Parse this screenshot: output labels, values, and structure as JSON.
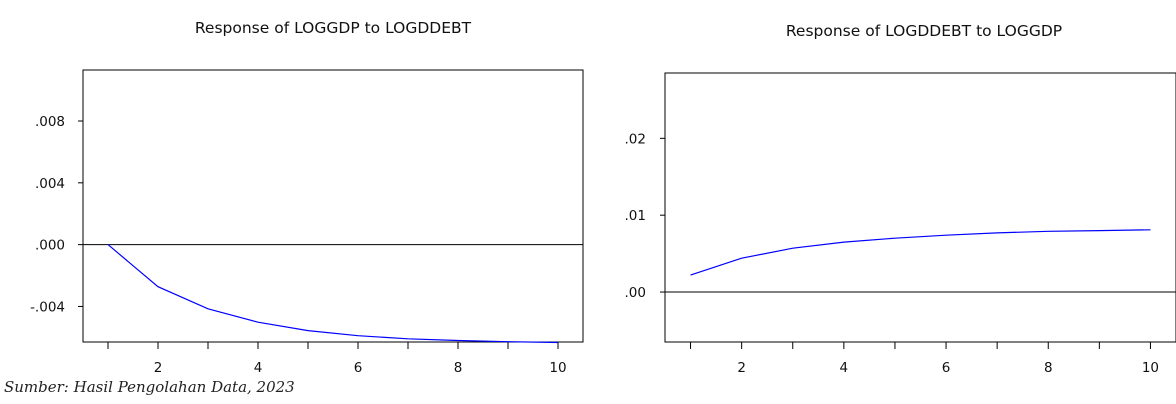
{
  "chart_data": [
    {
      "type": "line",
      "title": "Response of LOGGDP to LOGDDEBT",
      "xlabel": "",
      "ylabel": "",
      "xlim": [
        0.5,
        10.5
      ],
      "ylim": [
        -0.0063,
        0.0113
      ],
      "x_ticks": [
        2,
        4,
        6,
        8,
        10
      ],
      "y_ticks": [
        {
          "value": 0.008,
          "label": ".008"
        },
        {
          "value": 0.004,
          "label": ".004"
        },
        {
          "value": 0.0,
          "label": ".000"
        },
        {
          "value": -0.004,
          "label": "-.004"
        }
      ],
      "zero_line": true,
      "series": [
        {
          "color": "#0000ff",
          "x": [
            1,
            2,
            3,
            4,
            5,
            6,
            7,
            8,
            9,
            10
          ],
          "values": [
            0.0,
            -0.00272,
            -0.00415,
            -0.00502,
            -0.00556,
            -0.00589,
            -0.00609,
            -0.0062,
            -0.00628,
            -0.00633
          ]
        }
      ]
    },
    {
      "type": "line",
      "title": "Response of LOGDDEBT to LOGGDP",
      "xlabel": "",
      "ylabel": "",
      "xlim": [
        0.5,
        10.5
      ],
      "ylim": [
        -0.0065,
        0.0285
      ],
      "x_ticks": [
        2,
        4,
        6,
        8,
        10
      ],
      "y_ticks": [
        {
          "value": 0.02,
          "label": ".02"
        },
        {
          "value": 0.01,
          "label": ".01"
        },
        {
          "value": 0.0,
          "label": ".00"
        }
      ],
      "zero_line": true,
      "series": [
        {
          "color": "#0000ff",
          "x": [
            1,
            2,
            3,
            4,
            5,
            6,
            7,
            8,
            9,
            10
          ],
          "values": [
            0.0022,
            0.0044,
            0.0057,
            0.0065,
            0.007,
            0.0074,
            0.0077,
            0.0079,
            0.008,
            0.0081
          ]
        }
      ]
    }
  ],
  "source": "Sumber: Hasil Pengolahan Data, 2023"
}
